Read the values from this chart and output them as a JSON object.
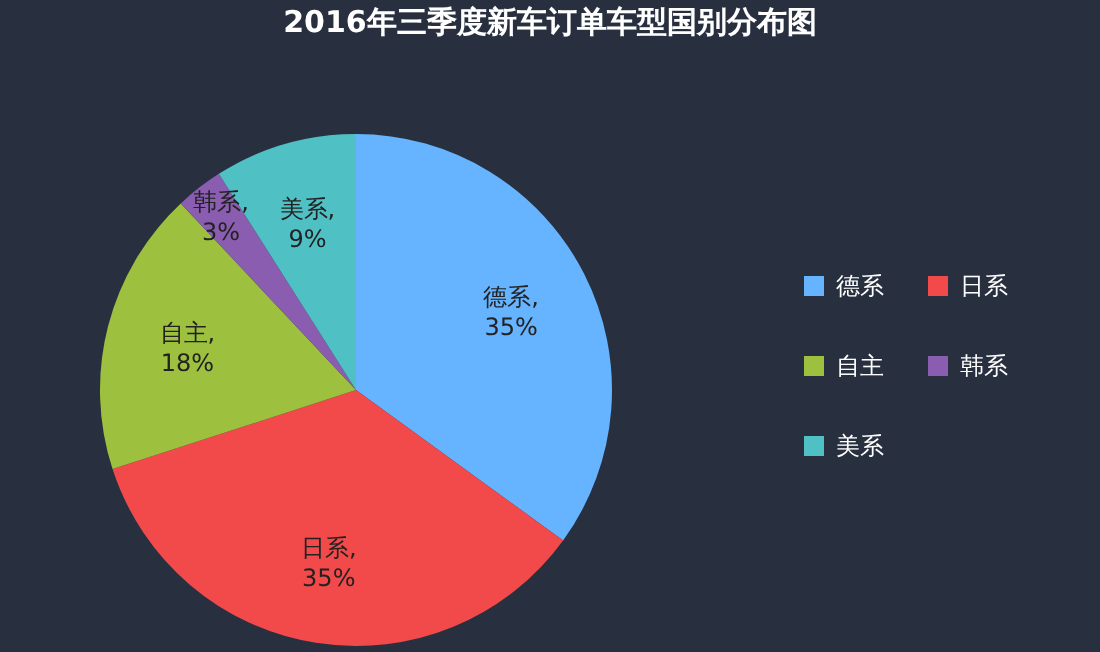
{
  "chart_data": {
    "type": "pie",
    "title": "2016年三季度新车订单车型国别分布图",
    "categories": [
      "德系",
      "日系",
      "自主",
      "韩系",
      "美系"
    ],
    "values": [
      35,
      35,
      18,
      3,
      9
    ],
    "value_labels": [
      "德系,\n35%",
      "日系,\n35%",
      "自主,\n18%",
      "韩系,\n3%",
      "美系,\n9%"
    ],
    "colors": [
      "#66b3ff",
      "#f24a4a",
      "#9dc13f",
      "#8a5db0",
      "#4fc0c4"
    ],
    "legend": "right"
  }
}
